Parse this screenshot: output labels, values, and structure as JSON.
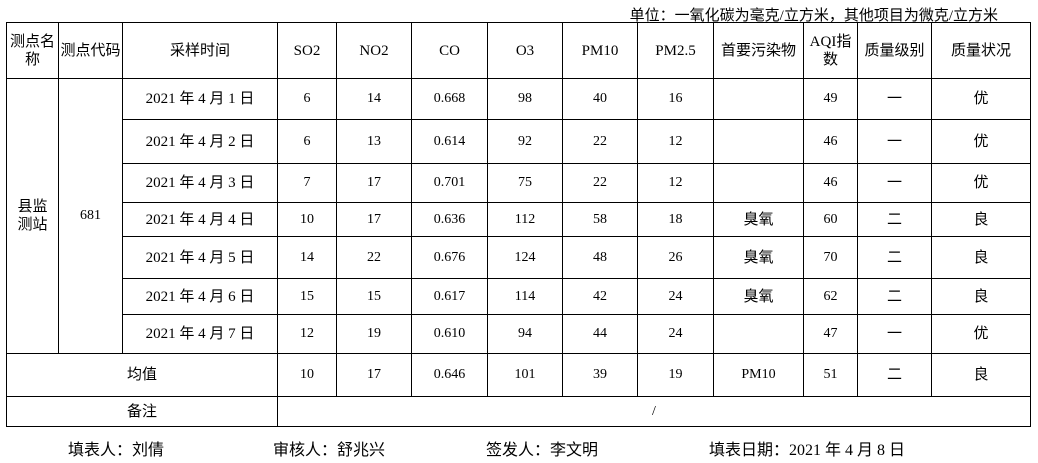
{
  "unit_note": "单位：一氧化碳为毫克/立方米，其他项目为微克/立方米",
  "headers": [
    "测点名称",
    "测点代码",
    "采样时间",
    "SO2",
    "NO2",
    "CO",
    "O3",
    "PM10",
    "PM2.5",
    "首要污染物",
    "AQI指数",
    "质量级别",
    "质量状况"
  ],
  "station": {
    "name": "县监测站",
    "code": "681"
  },
  "rows": [
    {
      "date": "2021 年 4 月 1 日",
      "so2": "6",
      "no2": "14",
      "co": "0.668",
      "o3": "98",
      "pm10": "40",
      "pm25": "16",
      "primary": "",
      "aqi": "49",
      "level": "一",
      "status": "优"
    },
    {
      "date": "2021 年 4 月 2 日",
      "so2": "6",
      "no2": "13",
      "co": "0.614",
      "o3": "92",
      "pm10": "22",
      "pm25": "12",
      "primary": "",
      "aqi": "46",
      "level": "一",
      "status": "优"
    },
    {
      "date": "2021 年 4 月 3 日",
      "so2": "7",
      "no2": "17",
      "co": "0.701",
      "o3": "75",
      "pm10": "22",
      "pm25": "12",
      "primary": "",
      "aqi": "46",
      "level": "一",
      "status": "优"
    },
    {
      "date": "2021 年 4 月 4 日",
      "so2": "10",
      "no2": "17",
      "co": "0.636",
      "o3": "112",
      "pm10": "58",
      "pm25": "18",
      "primary": "臭氧",
      "aqi": "60",
      "level": "二",
      "status": "良"
    },
    {
      "date": "2021 年 4 月 5 日",
      "so2": "14",
      "no2": "22",
      "co": "0.676",
      "o3": "124",
      "pm10": "48",
      "pm25": "26",
      "primary": "臭氧",
      "aqi": "70",
      "level": "二",
      "status": "良"
    },
    {
      "date": "2021 年 4 月 6 日",
      "so2": "15",
      "no2": "15",
      "co": "0.617",
      "o3": "114",
      "pm10": "42",
      "pm25": "24",
      "primary": "臭氧",
      "aqi": "62",
      "level": "二",
      "status": "良"
    },
    {
      "date": "2021 年 4 月 7 日",
      "so2": "12",
      "no2": "19",
      "co": "0.610",
      "o3": "94",
      "pm10": "44",
      "pm25": "24",
      "primary": "",
      "aqi": "47",
      "level": "一",
      "status": "优"
    }
  ],
  "average": {
    "label": "均值",
    "so2": "10",
    "no2": "17",
    "co": "0.646",
    "o3": "101",
    "pm10": "39",
    "pm25": "19",
    "primary": "PM10",
    "aqi": "51",
    "level": "二",
    "status": "良"
  },
  "remarks": {
    "label": "备注",
    "value": "/"
  },
  "footer": {
    "filler": "填表人：刘倩",
    "reviewer": "审核人：舒兆兴",
    "issuer": "签发人：李文明",
    "date": "填表日期：2021 年 4 月 8 日"
  }
}
